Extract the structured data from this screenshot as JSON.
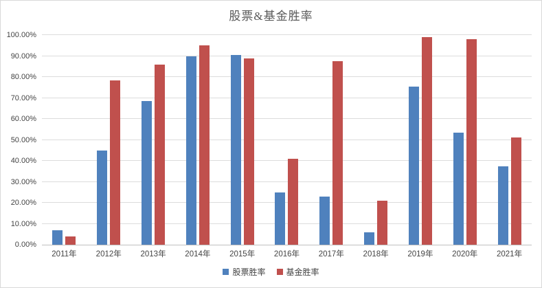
{
  "chart_data": {
    "type": "bar",
    "title": "股票&基金胜率",
    "categories": [
      "2011年",
      "2012年",
      "2013年",
      "2014年",
      "2015年",
      "2016年",
      "2017年",
      "2018年",
      "2019年",
      "2020年",
      "2021年"
    ],
    "series": [
      {
        "name": "股票胜率",
        "color": "#4F81BD",
        "values": [
          7,
          45,
          68.5,
          90,
          90.5,
          25,
          23,
          6,
          75.5,
          53.5,
          37.5
        ]
      },
      {
        "name": "基金胜率",
        "color": "#C0504D",
        "values": [
          4,
          78.5,
          86,
          95,
          89,
          41,
          87.5,
          21,
          99,
          98,
          51
        ]
      }
    ],
    "unit": "%",
    "ylim": [
      0,
      100
    ],
    "ytick_step": 10,
    "ytick_labels": [
      "0.00%",
      "10.00%",
      "20.00%",
      "30.00%",
      "40.00%",
      "50.00%",
      "60.00%",
      "70.00%",
      "80.00%",
      "90.00%",
      "100.00%"
    ],
    "xlabel": "",
    "ylabel": "",
    "grid": true,
    "legend_position": "bottom"
  },
  "colors": {
    "gridline": "#DCDCDC",
    "axis_line": "#BFBFBF",
    "title_text": "#595959",
    "tick_text": "#444444",
    "frame_border": "#D9D9D9",
    "background": "#FFFFFF"
  }
}
